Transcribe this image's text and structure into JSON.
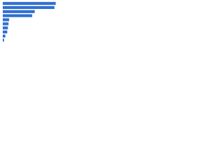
{
  "chart_data": {
    "type": "bar",
    "orientation": "horizontal",
    "categories": [
      null,
      null,
      null,
      null,
      null,
      null,
      null,
      null,
      null,
      null
    ],
    "values": [
      83,
      81,
      50,
      46,
      10,
      9,
      8,
      7,
      4,
      2
    ],
    "color": "#2f6fd1",
    "xlim": [
      0,
      100
    ]
  }
}
